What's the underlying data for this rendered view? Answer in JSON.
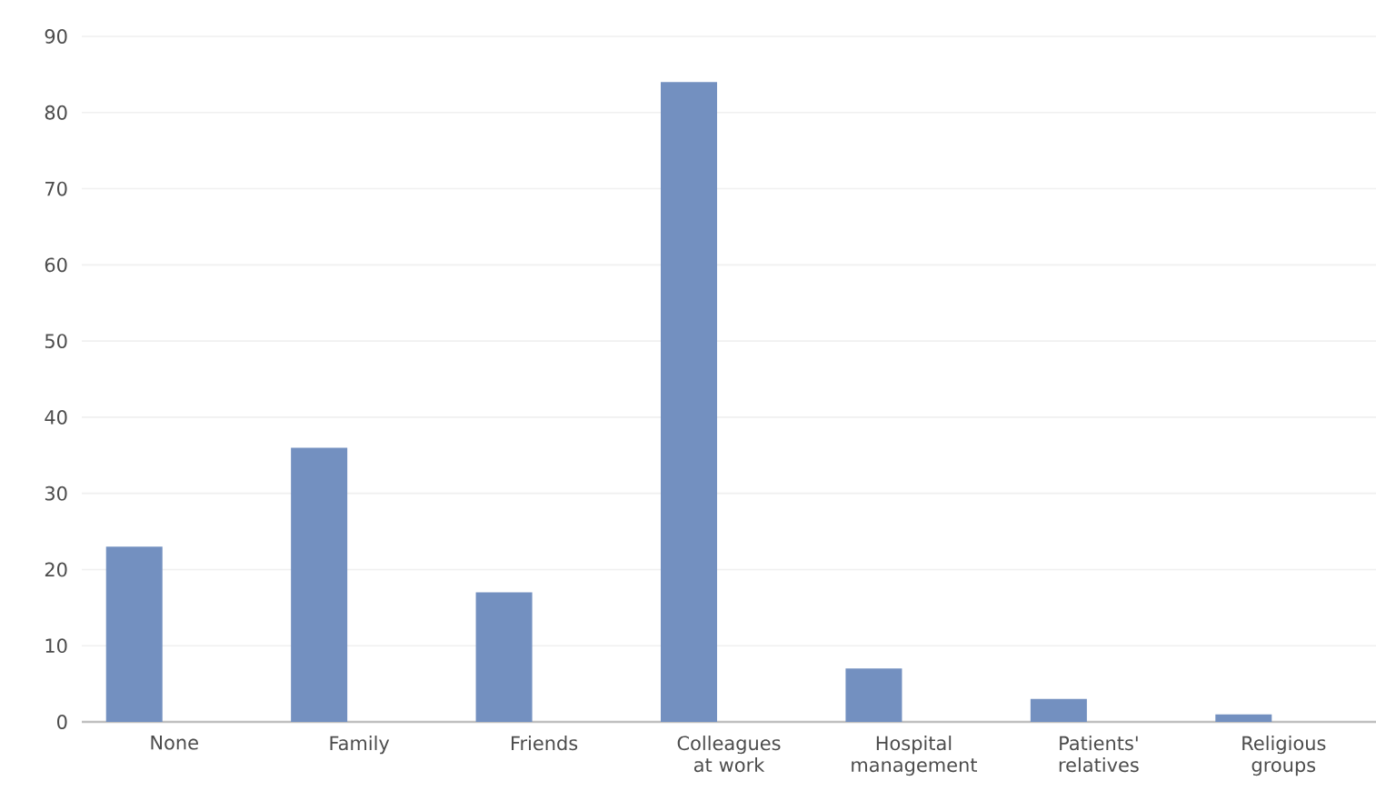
{
  "chart_data": {
    "type": "bar",
    "categories": [
      "None",
      "Family",
      "Friends",
      "Colleagues at work",
      "Hospital management",
      "Patients' relatives",
      "Religious groups"
    ],
    "values": [
      23,
      36,
      17,
      84,
      7,
      3,
      1
    ],
    "color": "#7390c0",
    "ylim": [
      0,
      90
    ],
    "yticks": [
      0,
      10,
      20,
      30,
      40,
      50,
      60,
      70,
      80,
      90
    ],
    "grid": "y"
  }
}
